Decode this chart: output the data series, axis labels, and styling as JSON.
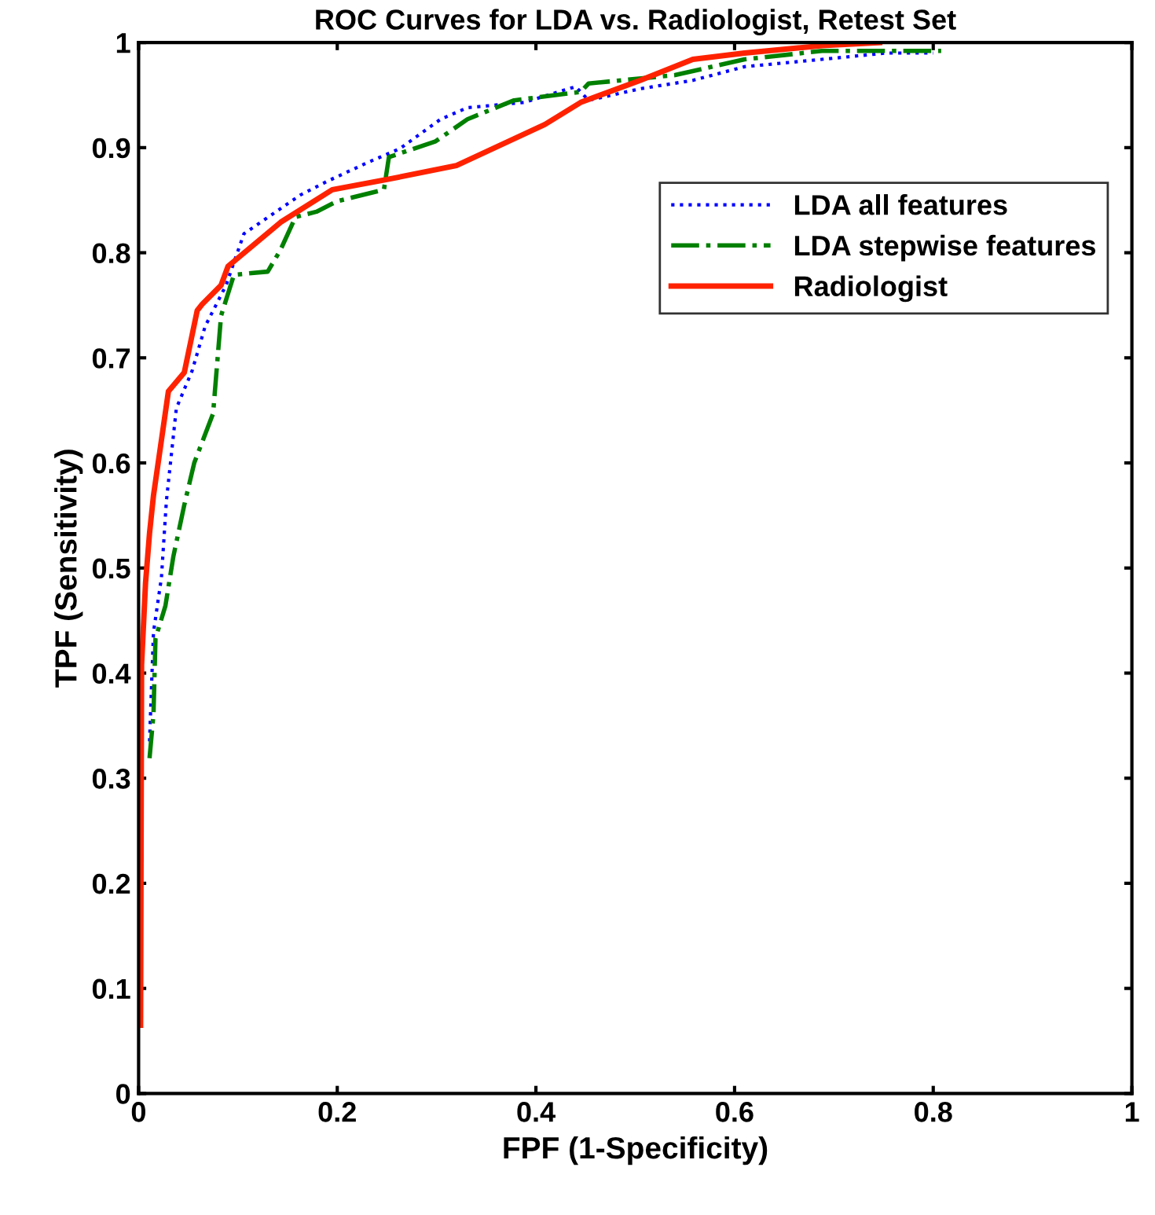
{
  "chart_data": {
    "type": "line",
    "title": "ROC Curves for LDA vs. Radiologist, Retest Set",
    "xlabel": "FPF (1-Specificity)",
    "ylabel": "TPF (Sensitivity)",
    "xlim": [
      0,
      1
    ],
    "ylim": [
      0,
      1
    ],
    "xticks": [
      0,
      0.2,
      0.4,
      0.6,
      0.8,
      1
    ],
    "yticks": [
      0,
      0.1,
      0.2,
      0.3,
      0.4,
      0.5,
      0.6,
      0.7,
      0.8,
      0.9,
      1
    ],
    "grid": false,
    "legend": "upper right",
    "marker": "none",
    "series": [
      {
        "name": "LDA all features",
        "color": "#0000ff",
        "line_style": "dotted",
        "x": [
          0.011,
          0.015,
          0.023,
          0.028,
          0.038,
          0.054,
          0.067,
          0.088,
          0.106,
          0.163,
          0.19,
          0.231,
          0.263,
          0.304,
          0.331,
          0.388,
          0.44,
          0.453,
          0.505,
          0.558,
          0.61,
          0.688,
          0.753,
          0.8
        ],
        "values": [
          0.335,
          0.439,
          0.491,
          0.564,
          0.652,
          0.688,
          0.73,
          0.769,
          0.818,
          0.855,
          0.868,
          0.886,
          0.899,
          0.927,
          0.938,
          0.943,
          0.958,
          0.945,
          0.956,
          0.964,
          0.977,
          0.984,
          0.99,
          0.99
        ]
      },
      {
        "name": "LDA stepwise features",
        "color": "#008000",
        "line_style": "dashdot",
        "x": [
          0.011,
          0.015,
          0.017,
          0.027,
          0.035,
          0.046,
          0.056,
          0.075,
          0.083,
          0.096,
          0.13,
          0.143,
          0.158,
          0.179,
          0.2,
          0.247,
          0.252,
          0.299,
          0.331,
          0.378,
          0.445,
          0.453,
          0.54,
          0.61,
          0.688,
          0.808
        ],
        "values": [
          0.319,
          0.361,
          0.433,
          0.464,
          0.511,
          0.56,
          0.6,
          0.647,
          0.74,
          0.779,
          0.782,
          0.803,
          0.834,
          0.839,
          0.849,
          0.86,
          0.891,
          0.906,
          0.927,
          0.945,
          0.953,
          0.961,
          0.969,
          0.984,
          0.992,
          0.992
        ]
      },
      {
        "name": "Radiologist",
        "color": "#ff2200",
        "line_style": "solid",
        "x": [
          0.002,
          0.003,
          0.007,
          0.011,
          0.015,
          0.03,
          0.046,
          0.059,
          0.064,
          0.083,
          0.09,
          0.143,
          0.195,
          0.252,
          0.32,
          0.409,
          0.445,
          0.505,
          0.558,
          0.61,
          0.688,
          0.746
        ],
        "values": [
          0.065,
          0.408,
          0.486,
          0.533,
          0.569,
          0.668,
          0.686,
          0.745,
          0.751,
          0.769,
          0.787,
          0.829,
          0.86,
          0.87,
          0.883,
          0.922,
          0.943,
          0.964,
          0.984,
          0.99,
          0.997,
          1.0
        ]
      }
    ]
  }
}
